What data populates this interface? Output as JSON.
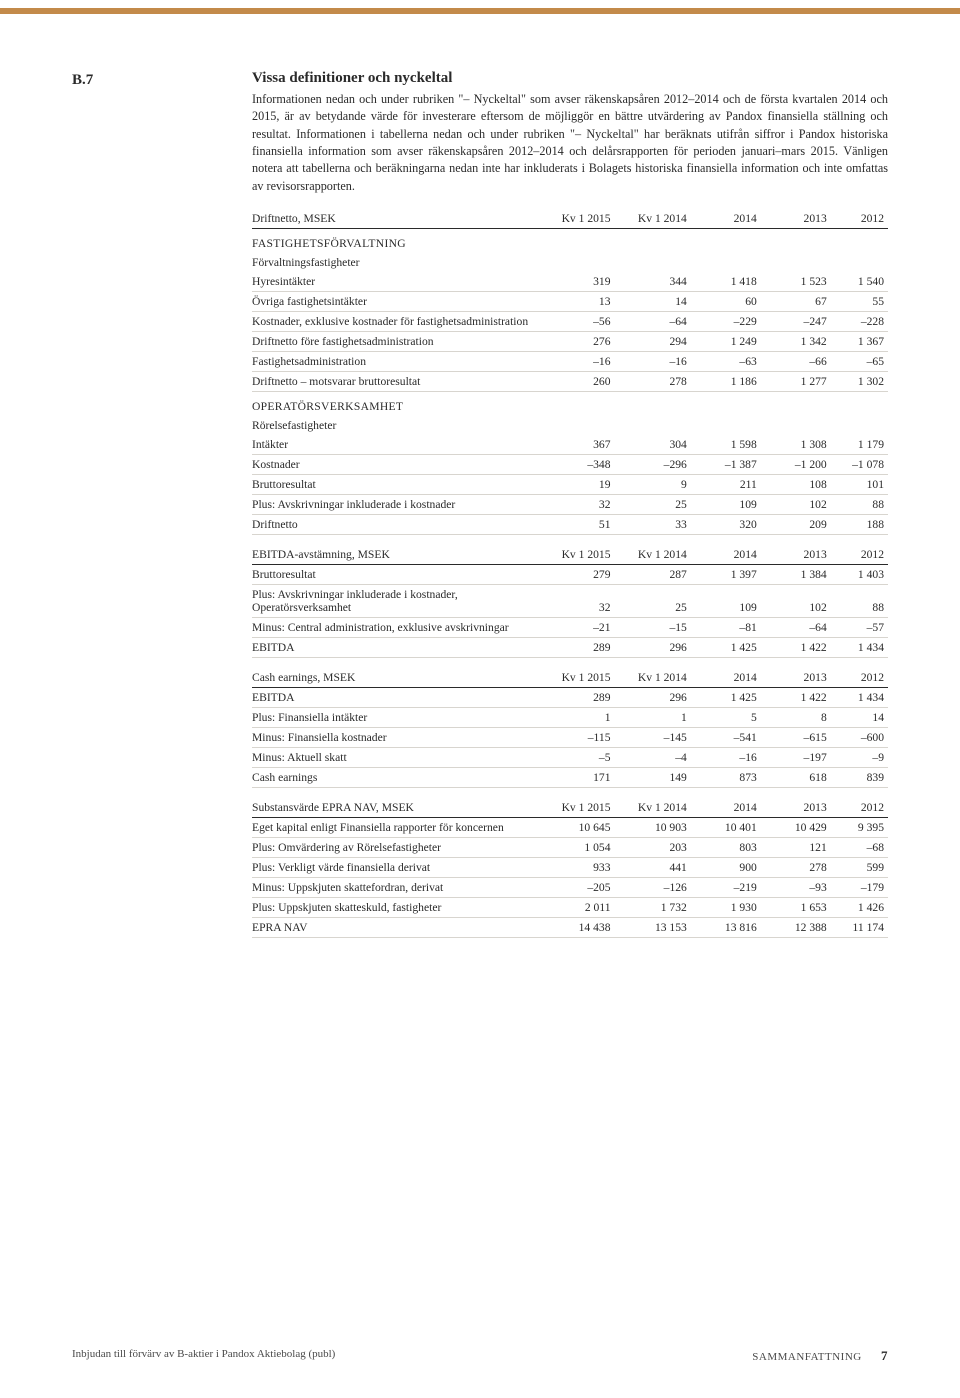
{
  "section_id": "B.7",
  "heading": "Vissa definitioner och nyckeltal",
  "paragraph": "Informationen nedan och under rubriken \"– Nyckeltal\" som avser räkenskapsåren 2012–2014 och de första kvartalen 2014 och 2015, är av betydande värde för investerare eftersom de möjliggör en bättre utvärdering av Pandox finansiella ställning och resultat. Informationen i tabellerna nedan och under rubriken \"– Nyckeltal\" har beräknats utifrån siffror i Pandox historiska finansiella information som avser räkenskapsåren 2012–2014 och delårsrapporten för perioden januari–mars 2015. Vänligen notera att tabellerna och beräkningarna nedan inte har inkluderats i Bolagets historiska finansiella information och inte omfattas av revisorsrapporten.",
  "columns": {
    "kv1": "Kv 1 2015",
    "kv2": "Kv 1 2014",
    "y2014": "2014",
    "y2013": "2013",
    "y2012": "2012"
  },
  "tables": {
    "t1": {
      "title": "Driftnetto, MSEK",
      "sec1_title": "FASTIGHETSFÖRVALTNING",
      "sec1_sub": "Förvaltningsfastigheter",
      "rows1": [
        {
          "label": "Hyresintäkter",
          "v": [
            "319",
            "344",
            "1 418",
            "1 523",
            "1 540"
          ]
        },
        {
          "label": "Övriga fastighetsintäkter",
          "v": [
            "13",
            "14",
            "60",
            "67",
            "55"
          ]
        },
        {
          "label": "Kostnader, exklusive kostnader för fastighetsadministration",
          "v": [
            "–56",
            "–64",
            "–229",
            "–247",
            "–228"
          ]
        },
        {
          "label": "Driftnetto före fastighetsadministration",
          "v": [
            "276",
            "294",
            "1 249",
            "1 342",
            "1 367"
          ]
        },
        {
          "label": "Fastighetsadministration",
          "v": [
            "–16",
            "–16",
            "–63",
            "–66",
            "–65"
          ]
        },
        {
          "label": "Driftnetto – motsvarar bruttoresultat",
          "v": [
            "260",
            "278",
            "1 186",
            "1 277",
            "1 302"
          ]
        }
      ],
      "sec2_title": "OPERATÖRSVERKSAMHET",
      "sec2_sub": "Rörelsefastigheter",
      "rows2": [
        {
          "label": "Intäkter",
          "v": [
            "367",
            "304",
            "1 598",
            "1 308",
            "1 179"
          ]
        },
        {
          "label": "Kostnader",
          "v": [
            "–348",
            "–296",
            "–1 387",
            "–1 200",
            "–1 078"
          ]
        },
        {
          "label": "Bruttoresultat",
          "v": [
            "19",
            "9",
            "211",
            "108",
            "101"
          ]
        },
        {
          "label": "Plus: Avskrivningar inkluderade i kostnader",
          "v": [
            "32",
            "25",
            "109",
            "102",
            "88"
          ]
        },
        {
          "label": "Driftnetto",
          "v": [
            "51",
            "33",
            "320",
            "209",
            "188"
          ]
        }
      ]
    },
    "t2": {
      "title": "EBITDA-avstämning, MSEK",
      "rows": [
        {
          "label": "Bruttoresultat",
          "v": [
            "279",
            "287",
            "1 397",
            "1 384",
            "1 403"
          ]
        },
        {
          "label": "Plus: Avskrivningar inkluderade i kostnader, Operatörsverksamhet",
          "v": [
            "32",
            "25",
            "109",
            "102",
            "88"
          ]
        },
        {
          "label": "Minus: Central administration, exklusive avskrivningar",
          "v": [
            "–21",
            "–15",
            "–81",
            "–64",
            "–57"
          ]
        },
        {
          "label": "EBITDA",
          "v": [
            "289",
            "296",
            "1 425",
            "1 422",
            "1 434"
          ]
        }
      ]
    },
    "t3": {
      "title": "Cash earnings, MSEK",
      "rows": [
        {
          "label": "EBITDA",
          "v": [
            "289",
            "296",
            "1 425",
            "1 422",
            "1 434"
          ]
        },
        {
          "label": "Plus: Finansiella intäkter",
          "v": [
            "1",
            "1",
            "5",
            "8",
            "14"
          ]
        },
        {
          "label": "Minus: Finansiella kostnader",
          "v": [
            "–115",
            "–145",
            "–541",
            "–615",
            "–600"
          ]
        },
        {
          "label": "Minus: Aktuell skatt",
          "v": [
            "–5",
            "–4",
            "–16",
            "–197",
            "–9"
          ]
        },
        {
          "label": "Cash earnings",
          "v": [
            "171",
            "149",
            "873",
            "618",
            "839"
          ]
        }
      ]
    },
    "t4": {
      "title": "Substansvärde EPRA NAV, MSEK",
      "rows": [
        {
          "label": "Eget kapital enligt Finansiella rapporter för koncernen",
          "v": [
            "10 645",
            "10 903",
            "10 401",
            "10 429",
            "9 395"
          ]
        },
        {
          "label": "Plus: Omvärdering av Rörelsefastigheter",
          "v": [
            "1 054",
            "203",
            "803",
            "121",
            "–68"
          ]
        },
        {
          "label": "Plus: Verkligt värde finansiella derivat",
          "v": [
            "933",
            "441",
            "900",
            "278",
            "599"
          ]
        },
        {
          "label": "Minus: Uppskjuten skattefordran, derivat",
          "v": [
            "–205",
            "–126",
            "–219",
            "–93",
            "–179"
          ]
        },
        {
          "label": "Plus: Uppskjuten skatteskuld, fastigheter",
          "v": [
            "2 011",
            "1 732",
            "1 930",
            "1 653",
            "1 426"
          ]
        },
        {
          "label": "EPRA NAV",
          "v": [
            "14 438",
            "13 153",
            "13 816",
            "12 388",
            "11 174"
          ]
        }
      ]
    }
  },
  "footer": {
    "left": "Inbjudan till förvärv av B-aktier i Pandox Aktiebolag (publ)",
    "right_label": "SAMMANFATTNING",
    "page": "7"
  }
}
